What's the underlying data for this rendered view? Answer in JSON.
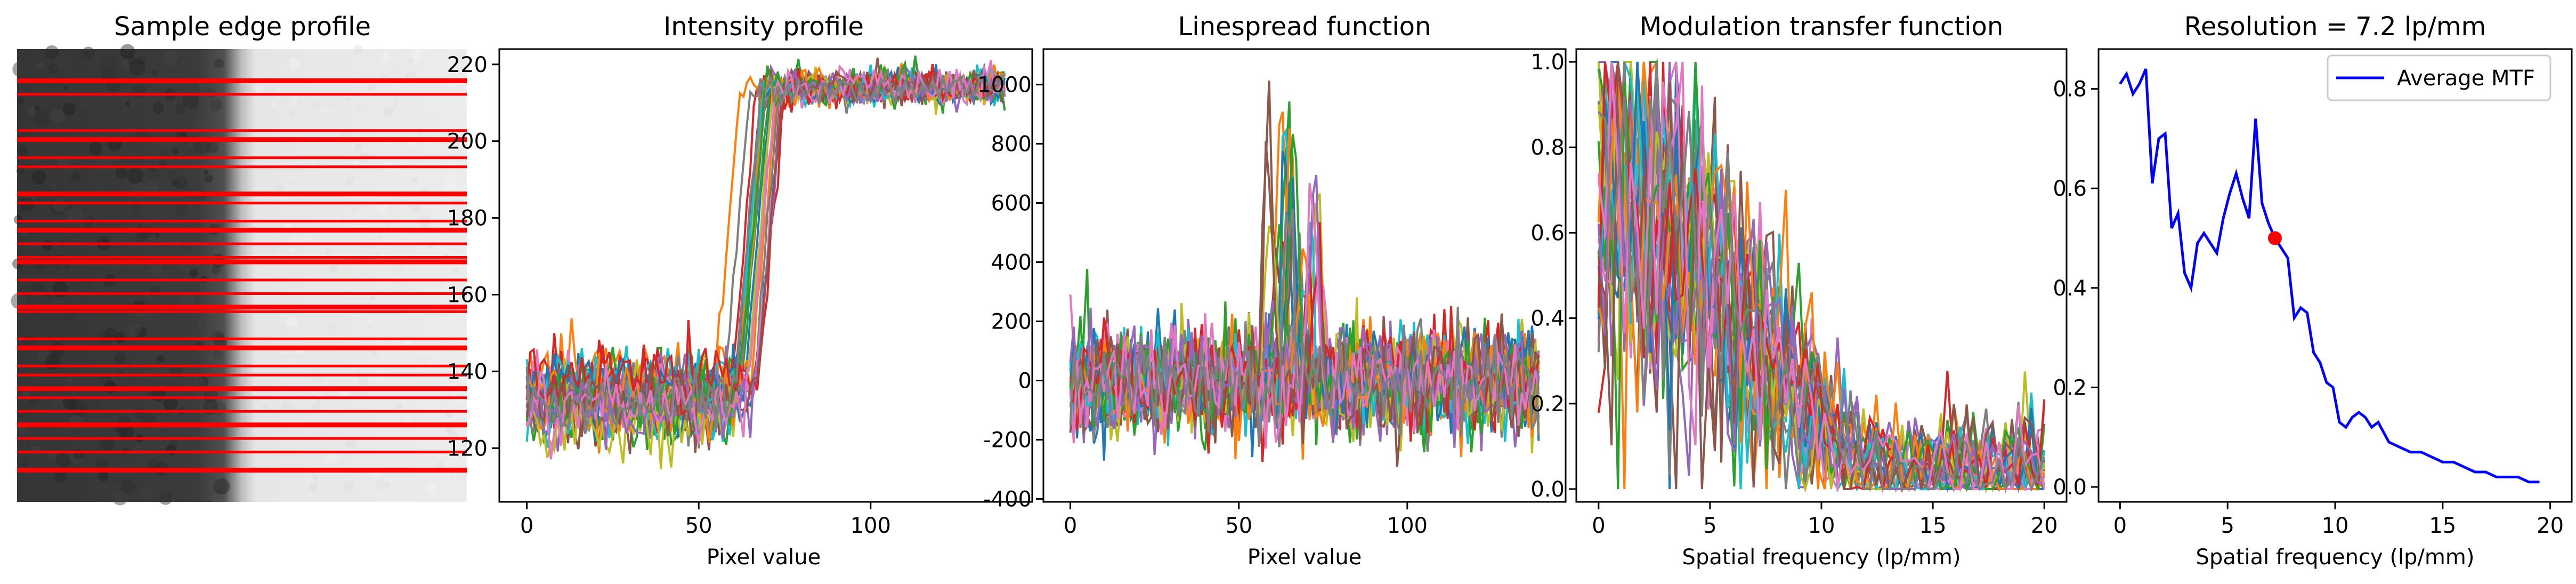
{
  "chart_data": [
    {
      "id": "panel-sample-edge",
      "type": "image",
      "title": "Sample edge profile",
      "description_marks": "grayscale edge image with red horizontal profile lines",
      "edge_colors": {
        "dark": "#373737",
        "bright": "#ebebeb",
        "line": "#ff0000"
      },
      "profile_rows_fraction": [
        0.07,
        0.1,
        0.18,
        0.2,
        0.24,
        0.26,
        0.32,
        0.34,
        0.38,
        0.4,
        0.43,
        0.46,
        0.47,
        0.51,
        0.54,
        0.57,
        0.58,
        0.64,
        0.66,
        0.7,
        0.72,
        0.75,
        0.77,
        0.8,
        0.83,
        0.86,
        0.89,
        0.93
      ],
      "grid": false
    },
    {
      "id": "panel-intensity",
      "type": "line",
      "title": "Intensity profile",
      "xlabel": "Pixel value",
      "ylabel": "",
      "xlim": [
        -8,
        147
      ],
      "ylim": [
        106,
        224
      ],
      "xticks": [
        0,
        50,
        100
      ],
      "yticks": [
        120,
        140,
        160,
        180,
        200,
        220
      ],
      "n_series": 28,
      "x_points": 140,
      "edge_start_range": [
        54,
        68
      ],
      "low_level": 133,
      "high_level": 214,
      "noise_amplitude": 6,
      "grid": false,
      "legend": false
    },
    {
      "id": "panel-lsf",
      "type": "line",
      "title": "Linespread function",
      "xlabel": "Pixel value",
      "ylabel": "",
      "xlim": [
        -8,
        147
      ],
      "ylim": [
        -410,
        1120
      ],
      "xticks": [
        0,
        50,
        100
      ],
      "yticks": [
        -400,
        -200,
        0,
        200,
        400,
        600,
        800,
        1000
      ],
      "n_series": 28,
      "x_points": 140,
      "peak_range": [
        300,
        1050
      ],
      "noise_amplitude": 110,
      "grid": false,
      "legend": false
    },
    {
      "id": "panel-mtf",
      "type": "line",
      "title": "Modulation transfer function",
      "xlabel": "Spatial frequency (lp/mm)",
      "ylabel": "",
      "xlim": [
        -1,
        21
      ],
      "ylim": [
        -0.03,
        1.03
      ],
      "xticks": [
        0,
        5,
        10,
        15,
        20
      ],
      "yticks": [
        0.0,
        0.2,
        0.4,
        0.6,
        0.8,
        1.0
      ],
      "n_series": 28,
      "freq_max": 20,
      "points_per_series": 70,
      "grid": false,
      "legend": false
    },
    {
      "id": "panel-average-mtf",
      "type": "line",
      "title": "Resolution = 7.2 lp/mm",
      "xlabel": "Spatial frequency (lp/mm)",
      "ylabel": "",
      "xlim": [
        -1,
        21
      ],
      "ylim": [
        -0.03,
        0.88
      ],
      "xticks": [
        0,
        5,
        10,
        15,
        20
      ],
      "yticks": [
        0.0,
        0.2,
        0.4,
        0.6,
        0.8
      ],
      "grid": false,
      "legend": {
        "position": "top-right"
      },
      "series": [
        {
          "name": "Average MTF",
          "color": "#0000ff",
          "x": [
            0.0,
            0.3,
            0.6,
            0.9,
            1.2,
            1.5,
            1.8,
            2.1,
            2.4,
            2.7,
            3.0,
            3.3,
            3.6,
            3.9,
            4.2,
            4.5,
            4.8,
            5.1,
            5.4,
            5.7,
            6.0,
            6.3,
            6.6,
            6.9,
            7.2,
            7.5,
            7.8,
            8.1,
            8.4,
            8.7,
            9.0,
            9.3,
            9.6,
            9.9,
            10.2,
            10.5,
            10.8,
            11.1,
            11.4,
            11.7,
            12.0,
            12.5,
            13.0,
            13.5,
            14.0,
            14.5,
            15.0,
            15.5,
            16.0,
            16.5,
            17.0,
            17.5,
            18.0,
            18.5,
            19.0,
            19.5
          ],
          "y": [
            0.81,
            0.83,
            0.79,
            0.81,
            0.84,
            0.61,
            0.7,
            0.71,
            0.52,
            0.55,
            0.43,
            0.4,
            0.49,
            0.51,
            0.49,
            0.47,
            0.54,
            0.59,
            0.63,
            0.58,
            0.54,
            0.74,
            0.57,
            0.53,
            0.5,
            0.48,
            0.46,
            0.34,
            0.36,
            0.35,
            0.27,
            0.25,
            0.21,
            0.2,
            0.13,
            0.12,
            0.14,
            0.15,
            0.14,
            0.12,
            0.13,
            0.09,
            0.08,
            0.07,
            0.07,
            0.06,
            0.05,
            0.05,
            0.04,
            0.03,
            0.03,
            0.02,
            0.02,
            0.02,
            0.01,
            0.01
          ]
        }
      ],
      "marker": {
        "x": 7.2,
        "y": 0.5,
        "color": "#ff0000"
      }
    }
  ],
  "palette": [
    "#1f77b4",
    "#ff7f0e",
    "#2ca02c",
    "#d62728",
    "#9467bd",
    "#8c564b",
    "#e377c2",
    "#7f7f7f",
    "#bcbd22",
    "#17becf"
  ]
}
